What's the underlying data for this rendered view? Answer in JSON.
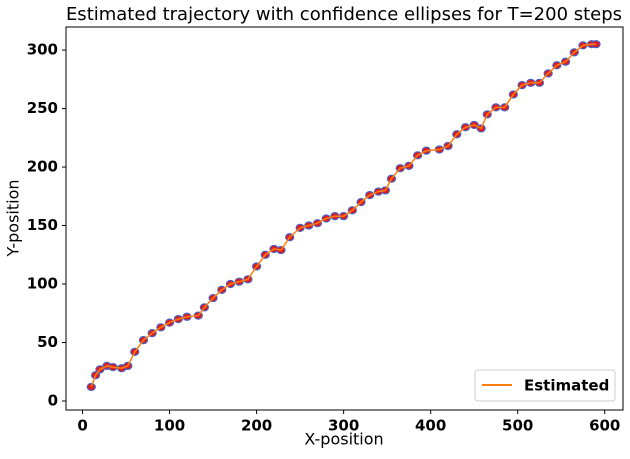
{
  "chart_data": {
    "type": "line",
    "title": "Estimated trajectory with confidence ellipses for T=200 steps",
    "x_label": "X-position",
    "y_label": "Y-position",
    "xlim": [
      -19,
      621
    ],
    "ylim": [
      -7.7,
      319.7
    ],
    "xticks": [
      0,
      100,
      200,
      300,
      400,
      500,
      600
    ],
    "yticks": [
      0,
      50,
      100,
      150,
      200,
      250,
      300
    ],
    "legend": "lower right",
    "ellipse_color": "#e31a1c",
    "ellipse_edge_color": "#4a5fc1",
    "series": [
      {
        "name": "Estimated",
        "color": "#ff7f0e",
        "x": [
          10,
          15,
          20,
          28,
          35,
          45,
          52,
          60,
          70,
          80,
          90,
          100,
          110,
          120,
          133,
          140,
          150,
          160,
          170,
          180,
          190,
          200,
          210,
          220,
          228,
          238,
          250,
          260,
          270,
          280,
          290,
          300,
          310,
          320,
          330,
          340,
          348,
          355,
          365,
          375,
          385,
          395,
          410,
          420,
          430,
          440,
          450,
          458,
          465,
          475,
          485,
          495,
          505,
          515,
          525,
          535,
          545,
          555,
          565,
          575,
          585,
          590
        ],
        "values": [
          12,
          22,
          27,
          30,
          29,
          28,
          30,
          42,
          52,
          58,
          63,
          67,
          70,
          72,
          73,
          80,
          88,
          95,
          100,
          102,
          104,
          115,
          125,
          130,
          129,
          140,
          148,
          150,
          152,
          156,
          158,
          158,
          163,
          170,
          176,
          179,
          180,
          190,
          199,
          201,
          210,
          214,
          215,
          218,
          228,
          234,
          236,
          233,
          245,
          251,
          251,
          262,
          270,
          272,
          272,
          280,
          287,
          290,
          298,
          304,
          305,
          305
        ]
      }
    ]
  }
}
